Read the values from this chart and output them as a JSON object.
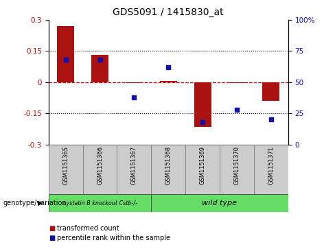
{
  "title": "GDS5091 / 1415830_at",
  "samples": [
    "GSM1151365",
    "GSM1151366",
    "GSM1151367",
    "GSM1151368",
    "GSM1151369",
    "GSM1151370",
    "GSM1151371"
  ],
  "bar_values": [
    0.27,
    0.13,
    -0.005,
    0.005,
    -0.215,
    -0.005,
    -0.09
  ],
  "dot_values": [
    68,
    68,
    38,
    62,
    18,
    28,
    20
  ],
  "ylim_left": [
    -0.3,
    0.3
  ],
  "ylim_right": [
    0,
    100
  ],
  "yticks_left": [
    -0.3,
    -0.15,
    0,
    0.15,
    0.3
  ],
  "yticks_right": [
    0,
    25,
    50,
    75,
    100
  ],
  "bar_color": "#aa1111",
  "dot_color": "#1111aa",
  "zero_line_color": "#cc0000",
  "hline_color": "#000000",
  "hlines": [
    0.15,
    -0.15
  ],
  "group1_label": "cystatin B knockout Cstb-/-",
  "group2_label": "wild type",
  "group1_count": 3,
  "group2_count": 4,
  "group_color": "#66dd66",
  "sample_box_color": "#cccccc",
  "legend_bar_label": "transformed count",
  "legend_dot_label": "percentile rank within the sample",
  "genotype_label": "genotype/variation",
  "right_ytick_labels": [
    "0",
    "25",
    "50",
    "75",
    "100%"
  ],
  "right_ytick_values": [
    0,
    25,
    50,
    75,
    100
  ],
  "left_ytick_labels": [
    "-0.3",
    "-0.15",
    "0",
    "0.15",
    "0.3"
  ]
}
